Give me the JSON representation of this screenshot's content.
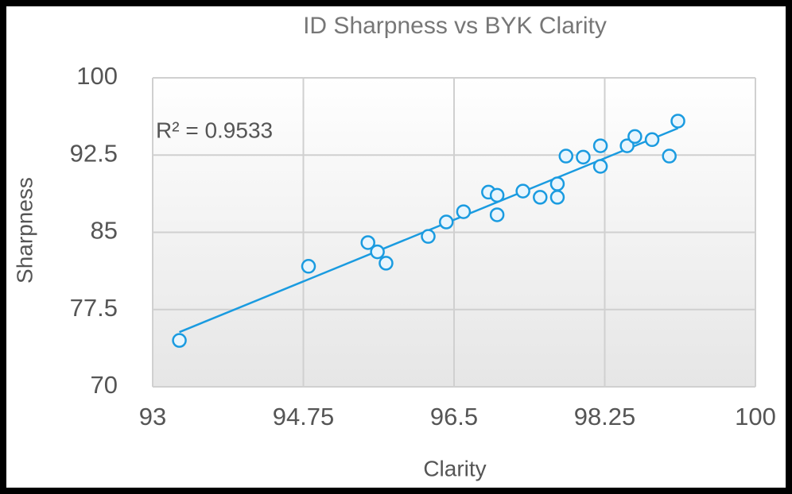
{
  "chart_data": {
    "type": "scatter",
    "title": "ID Sharpness vs BYK Clarity",
    "x_label": "Clarity",
    "y_label": "Sharpness",
    "annotation": "R² = 0.9533",
    "color": "#1a9be0",
    "trendline": true,
    "grid": true,
    "x": [
      93.31,
      94.81,
      95.5,
      95.61,
      95.71,
      96.2,
      96.41,
      96.61,
      96.9,
      97.0,
      97.0,
      97.3,
      97.5,
      97.7,
      97.7,
      97.8,
      98.0,
      98.2,
      98.2,
      98.51,
      98.6,
      98.8,
      99.0,
      99.1
    ],
    "values": [
      74.5,
      81.7,
      84.0,
      83.1,
      82.0,
      84.6,
      86.0,
      87.0,
      88.9,
      88.6,
      86.7,
      89.0,
      88.4,
      89.7,
      88.4,
      92.4,
      92.3,
      93.4,
      91.4,
      93.4,
      94.3,
      94.0,
      92.4,
      95.8
    ],
    "xlim": [
      93,
      100
    ],
    "xticks": [
      93,
      94.75,
      96.5,
      98.25,
      100
    ],
    "ylim": [
      70,
      100
    ],
    "yticks": [
      70,
      77.5,
      85,
      92.5,
      100
    ]
  }
}
